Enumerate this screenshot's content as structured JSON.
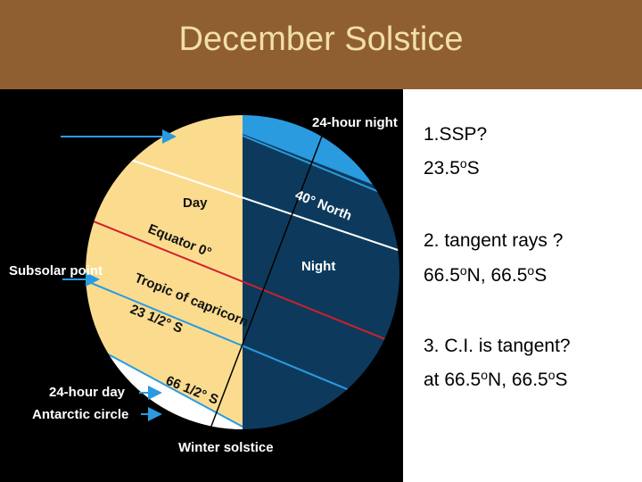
{
  "title": "December  Solstice",
  "diagram": {
    "night_cap": "24-hour night",
    "north_40": "40° North",
    "day": "Day",
    "equator": "Equator 0°",
    "night": "Night",
    "subsolar": "Subsolar point",
    "tropic": "Tropic of capricorn",
    "tropic_lat": "23 1/2° S",
    "day_cap": "24-hour day",
    "antarctic": "Antarctic circle",
    "antarctic_lat": "66 1/2° S",
    "caption": "Winter solstice"
  },
  "notes": [
    {
      "segments": [
        {
          "text": "1.SSP?"
        }
      ]
    },
    {
      "segments": [
        {
          "text": "23.5"
        },
        {
          "sup": "o"
        },
        {
          "text": "S"
        }
      ]
    },
    {
      "segments": [
        {
          "text": "2. tangent rays ?"
        }
      ]
    },
    {
      "segments": [
        {
          "text": "66.5"
        },
        {
          "sup": "o"
        },
        {
          "text": "N, 66.5"
        },
        {
          "sup": "o"
        },
        {
          "text": "S"
        }
      ]
    },
    {
      "segments": [
        {
          "text": "3. C.I. is tangent?"
        }
      ]
    },
    {
      "segments": [
        {
          "text": "at 66.5"
        },
        {
          "sup": "o"
        },
        {
          "text": "N, 66.5"
        },
        {
          "sup": "o"
        },
        {
          "text": "S"
        }
      ]
    }
  ]
}
